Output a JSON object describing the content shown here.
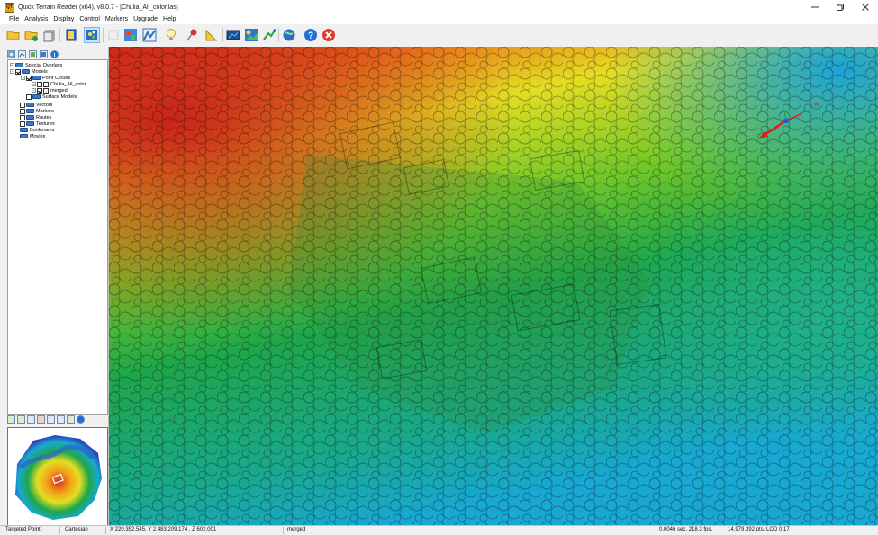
{
  "window": {
    "title": "Quick Terrain Reader (x64), v8.0.7 - [Chi.lia_All_color.las]",
    "app_icon_text": "QT",
    "controls": [
      "minimize-icon",
      "restore-icon",
      "close-icon"
    ]
  },
  "menu": [
    "File",
    "Analysis",
    "Display",
    "Control",
    "Markers",
    "Upgrade",
    "Help"
  ],
  "toolbar": {
    "buttons": [
      "open-folder-icon",
      "open-model-icon",
      "export-icon",
      "layers-icon",
      "point-cloud-icon",
      "blank-icon",
      "color-map-icon",
      "profile-icon",
      "lightbulb-icon",
      "pin-icon",
      "measure-icon",
      "screenshot-icon",
      "flythrough-icon",
      "path-icon",
      "globe-icon",
      "help-icon",
      "exit-icon"
    ],
    "active": "point-cloud-icon"
  },
  "tree": {
    "items": [
      {
        "label": "Special Overlays"
      },
      {
        "label": "Models"
      },
      {
        "label": "Point Clouds"
      },
      {
        "label": "Chi.lia_All_color"
      },
      {
        "label": "merged"
      },
      {
        "label": "Surface Models"
      },
      {
        "label": "Vectors"
      },
      {
        "label": "Markers"
      },
      {
        "label": "Routes"
      },
      {
        "label": "Textures"
      },
      {
        "label": "Bookmarks"
      },
      {
        "label": "Movies"
      }
    ]
  },
  "status": {
    "mode": "Targeted Point",
    "coord_system": "Cartesian",
    "coords": "X 220,352.545, Y 2,483,209.174 , Z 602.001",
    "model": "merged",
    "perf": "0.0046 sec, 218.3 fps,",
    "points": "14,979,392 pts, LOD 0.17"
  },
  "colors": {
    "elev_high": "#d8321a",
    "elev_mid_high": "#f2a21a",
    "elev_mid": "#e4de22",
    "elev_mid_low": "#1ea64a",
    "elev_low": "#18a8d2",
    "selection": "#cce4f7"
  }
}
